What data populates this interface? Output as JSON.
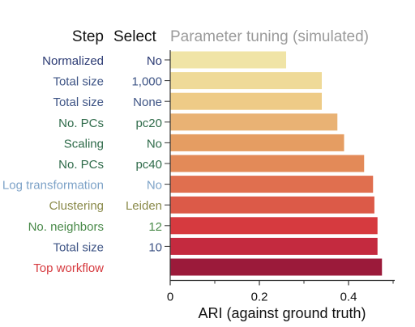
{
  "chart_data": {
    "type": "bar",
    "orientation": "horizontal",
    "column_headers": {
      "step": "Step",
      "select": "Select",
      "title": "Parameter tuning (simulated)"
    },
    "rows": [
      {
        "step": "Normalized",
        "select": "No",
        "value": 0.26,
        "step_color": "#2b3a73",
        "select_color": "#2b3a73",
        "bar_color": "#f0e4a6"
      },
      {
        "step": "Total size",
        "select": "1,000",
        "value": 0.34,
        "step_color": "#3e5485",
        "select_color": "#3e5485",
        "bar_color": "#efda98"
      },
      {
        "step": "Total size",
        "select": "None",
        "value": 0.34,
        "step_color": "#3e5485",
        "select_color": "#3e5485",
        "bar_color": "#eecb87"
      },
      {
        "step": "No. PCs",
        "select": "pc20",
        "value": 0.375,
        "step_color": "#2f6b4a",
        "select_color": "#2f6b4a",
        "bar_color": "#e9b274"
      },
      {
        "step": "Scaling",
        "select": "No",
        "value": 0.39,
        "step_color": "#2f6b4a",
        "select_color": "#2f6b4a",
        "bar_color": "#e59d62"
      },
      {
        "step": "No. PCs",
        "select": "pc40",
        "value": 0.435,
        "step_color": "#2f6b4a",
        "select_color": "#2f6b4a",
        "bar_color": "#e38a58"
      },
      {
        "step": "Log transformation",
        "select": "No",
        "value": 0.455,
        "step_color": "#7ea3c8",
        "select_color": "#7ea3c8",
        "bar_color": "#e06f4f"
      },
      {
        "step": "Clustering",
        "select": "Leiden",
        "value": 0.458,
        "step_color": "#8a8a4a",
        "select_color": "#8a8a4a",
        "bar_color": "#dc5a48"
      },
      {
        "step": "No. neighbors",
        "select": "12",
        "value": 0.465,
        "step_color": "#4a8a4a",
        "select_color": "#4a8a4a",
        "bar_color": "#d63a3f"
      },
      {
        "step": "Total size",
        "select": "10",
        "value": 0.465,
        "step_color": "#3e5485",
        "select_color": "#3e5485",
        "bar_color": "#c42a3f"
      },
      {
        "step": "Top workflow",
        "select": "",
        "value": 0.475,
        "step_color": "#d63a3f",
        "select_color": "#d63a3f",
        "bar_color": "#9b1a3a"
      }
    ],
    "xlabel": "ARI (against ground truth)",
    "xlim": [
      0,
      0.5
    ],
    "xticks": [
      0,
      0.2,
      0.4
    ],
    "xtick_labels": [
      "0",
      "0.2",
      "0.4"
    ],
    "minor_xticks": [
      0.1,
      0.3,
      0.5
    ],
    "grid": false
  }
}
